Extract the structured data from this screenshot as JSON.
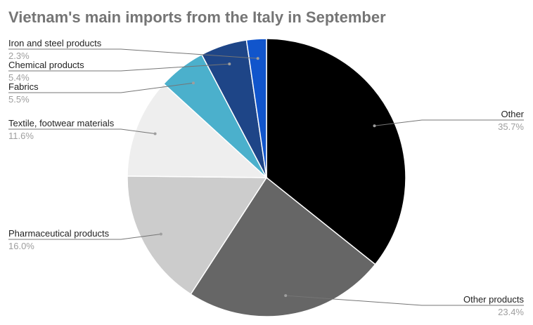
{
  "title": "Vietnam's main imports from the Italy in September",
  "chart_data": {
    "type": "pie",
    "title": "Vietnam's main imports from the Italy in September",
    "legend": "labels",
    "slices": [
      {
        "label": "Other",
        "value": 35.7,
        "display": "35.7%",
        "color": "#000000"
      },
      {
        "label": "Other products",
        "value": 23.4,
        "display": "23.4%",
        "color": "#666666"
      },
      {
        "label": "Pharmaceutical products",
        "value": 16.0,
        "display": "16.0%",
        "color": "#cccccc"
      },
      {
        "label": "Textile, footwear materials",
        "value": 11.6,
        "display": "11.6%",
        "color": "#eeeeee"
      },
      {
        "label": "Fabrics",
        "value": 5.5,
        "display": "5.5%",
        "color": "#4bb0cc"
      },
      {
        "label": "Chemical products",
        "value": 5.4,
        "display": "5.4%",
        "color": "#1e4587"
      },
      {
        "label": "Iron and steel products",
        "value": 2.3,
        "display": "2.3%",
        "color": "#1155cc"
      }
    ]
  }
}
